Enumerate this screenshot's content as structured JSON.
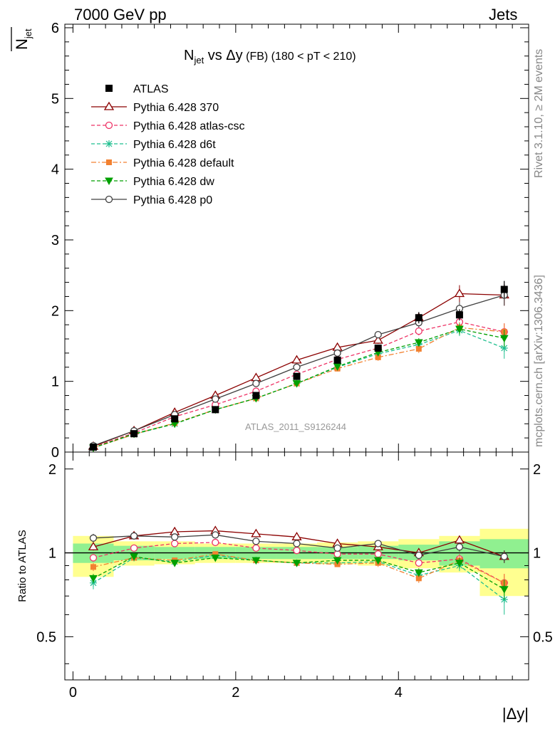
{
  "header": {
    "left": "7000 GeV pp",
    "right": "Jets"
  },
  "side_labels": {
    "rivet": "Rivet 3.1.10, ≥ 2M events",
    "mcplots": "mcplots.cern.ch [arXiv:1306.3436]"
  },
  "colors": {
    "data": "#000000",
    "p370": "#8b0000",
    "atlascsc": "#ee3366",
    "d6t": "#1fbf8f",
    "default": "#f28130",
    "dw": "#00a000",
    "p0": "#404040",
    "band_stat": "#90f090",
    "band_total": "#ffff90",
    "watermark": "#999999"
  },
  "chart_data": [
    {
      "type": "line",
      "title_main": "N",
      "title_sub": "jet",
      "title_vs": " vs Δy",
      "title_fb": " (FB) ",
      "title_range": "(180 < pT < 210)",
      "ylabel": "N",
      "ylabel_sub": "jet",
      "xlabel": "|Δy|",
      "watermark": "ATLAS_2011_S9126244",
      "xlim": [
        -0.1,
        5.6
      ],
      "ylim": [
        0,
        6.05
      ],
      "xticks": [
        "0",
        "2",
        "4"
      ],
      "xtick_values": [
        0,
        2,
        4
      ],
      "yticks": [
        "0",
        "1",
        "2",
        "3",
        "4",
        "5",
        "6"
      ],
      "ytick_values": [
        0,
        1,
        2,
        3,
        4,
        5,
        6
      ],
      "legend_position": "top-left",
      "x": [
        0.25,
        0.75,
        1.25,
        1.75,
        2.25,
        2.75,
        3.25,
        3.75,
        4.25,
        4.75,
        5.3
      ],
      "data": {
        "name": "ATLAS",
        "values": [
          0.07,
          0.26,
          0.47,
          0.6,
          0.8,
          1.07,
          1.3,
          1.47,
          1.9,
          1.94,
          2.3
        ],
        "errors": [
          0.01,
          0.01,
          0.02,
          0.02,
          0.03,
          0.04,
          0.04,
          0.05,
          0.08,
          0.08,
          0.12
        ]
      },
      "series": [
        {
          "name": "Pythia 6.428 370",
          "key": "p370",
          "marker": "triangle-open",
          "dash": "solid",
          "values": [
            0.08,
            0.3,
            0.56,
            0.8,
            1.05,
            1.3,
            1.48,
            1.58,
            1.9,
            2.24,
            2.22
          ],
          "errors": [
            0.01,
            0.01,
            0.02,
            0.02,
            0.03,
            0.03,
            0.04,
            0.05,
            0.07,
            0.12,
            0.15
          ]
        },
        {
          "name": "Pythia 6.428 atlas-csc",
          "key": "atlascsc",
          "marker": "circle-open",
          "dash": "dashed",
          "values": [
            0.07,
            0.27,
            0.5,
            0.67,
            0.86,
            1.1,
            1.31,
            1.47,
            1.71,
            1.84,
            1.7
          ],
          "errors": [
            0.01,
            0.01,
            0.02,
            0.02,
            0.03,
            0.03,
            0.04,
            0.05,
            0.06,
            0.08,
            0.12
          ]
        },
        {
          "name": "Pythia 6.428 d6t",
          "key": "d6t",
          "marker": "star",
          "dash": "dashed",
          "values": [
            0.06,
            0.25,
            0.4,
            0.6,
            0.76,
            0.97,
            1.2,
            1.39,
            1.52,
            1.72,
            1.47
          ],
          "errors": [
            0.01,
            0.01,
            0.02,
            0.02,
            0.03,
            0.03,
            0.04,
            0.05,
            0.06,
            0.08,
            0.15
          ]
        },
        {
          "name": "Pythia 6.428 default",
          "key": "default",
          "marker": "square",
          "dash": "dashdot",
          "values": [
            0.06,
            0.25,
            0.41,
            0.6,
            0.76,
            0.97,
            1.18,
            1.34,
            1.46,
            1.76,
            1.7
          ],
          "errors": [
            0.01,
            0.01,
            0.02,
            0.02,
            0.03,
            0.03,
            0.04,
            0.05,
            0.06,
            0.08,
            0.12
          ]
        },
        {
          "name": "Pythia 6.428 dw",
          "key": "dw",
          "marker": "triangle-down",
          "dash": "dashed",
          "values": [
            0.06,
            0.26,
            0.4,
            0.6,
            0.76,
            0.97,
            1.21,
            1.41,
            1.55,
            1.74,
            1.61
          ],
          "errors": [
            0.01,
            0.01,
            0.02,
            0.02,
            0.03,
            0.03,
            0.04,
            0.05,
            0.06,
            0.08,
            0.12
          ]
        },
        {
          "name": "Pythia 6.428 p0",
          "key": "p0",
          "marker": "circle-open",
          "dash": "solid",
          "values": [
            0.09,
            0.3,
            0.53,
            0.75,
            0.97,
            1.2,
            1.4,
            1.66,
            1.83,
            2.03,
            2.22
          ],
          "errors": [
            0.01,
            0.01,
            0.02,
            0.02,
            0.03,
            0.03,
            0.04,
            0.05,
            0.07,
            0.09,
            0.15
          ]
        }
      ]
    },
    {
      "type": "line",
      "ylabel": "Ratio to ATLAS",
      "xlim": [
        -0.1,
        5.6
      ],
      "ylim": [
        0.35,
        2.3
      ],
      "yticks": [
        "0.5",
        "1",
        "2"
      ],
      "ytick_values": [
        0.5,
        1,
        2
      ],
      "reference_line": 1,
      "bin_edges": [
        0,
        0.5,
        1,
        1.5,
        2,
        2.5,
        3,
        3.5,
        4,
        4.5,
        5,
        5.6
      ],
      "band_stat": [
        [
          0.92,
          1.08
        ],
        [
          0.94,
          1.06
        ],
        [
          0.95,
          1.05
        ],
        [
          0.95,
          1.05
        ],
        [
          0.95,
          1.05
        ],
        [
          0.95,
          1.05
        ],
        [
          0.95,
          1.05
        ],
        [
          0.95,
          1.06
        ],
        [
          0.94,
          1.07
        ],
        [
          0.9,
          1.1
        ],
        [
          0.88,
          1.12
        ]
      ],
      "band_total": [
        [
          0.82,
          1.15
        ],
        [
          0.9,
          1.1
        ],
        [
          0.91,
          1.1
        ],
        [
          0.92,
          1.08
        ],
        [
          0.92,
          1.08
        ],
        [
          0.92,
          1.08
        ],
        [
          0.91,
          1.09
        ],
        [
          0.9,
          1.1
        ],
        [
          0.88,
          1.12
        ],
        [
          0.85,
          1.15
        ],
        [
          0.7,
          1.22
        ]
      ],
      "series": [
        {
          "key": "p370",
          "values": [
            1.05,
            1.15,
            1.19,
            1.2,
            1.17,
            1.14,
            1.08,
            1.05,
            1.0,
            1.11,
            0.97
          ],
          "errors": [
            0.03,
            0.02,
            0.02,
            0.02,
            0.02,
            0.02,
            0.02,
            0.03,
            0.03,
            0.04,
            0.05
          ]
        },
        {
          "key": "atlascsc",
          "values": [
            0.96,
            1.04,
            1.08,
            1.09,
            1.04,
            1.02,
            0.99,
            0.99,
            0.92,
            0.95,
            0.78
          ],
          "errors": [
            0.03,
            0.02,
            0.02,
            0.02,
            0.02,
            0.02,
            0.02,
            0.03,
            0.03,
            0.04,
            0.06
          ]
        },
        {
          "key": "d6t",
          "values": [
            0.78,
            0.96,
            0.93,
            0.98,
            0.94,
            0.92,
            0.92,
            0.93,
            0.83,
            0.9,
            0.68
          ],
          "errors": [
            0.04,
            0.02,
            0.02,
            0.02,
            0.02,
            0.02,
            0.02,
            0.03,
            0.03,
            0.04,
            0.08
          ]
        },
        {
          "key": "default",
          "values": [
            0.89,
            0.96,
            0.94,
            0.99,
            0.94,
            0.92,
            0.91,
            0.92,
            0.81,
            0.94,
            0.78
          ],
          "errors": [
            0.03,
            0.02,
            0.02,
            0.02,
            0.02,
            0.02,
            0.02,
            0.03,
            0.03,
            0.04,
            0.06
          ]
        },
        {
          "key": "dw",
          "values": [
            0.81,
            0.97,
            0.92,
            0.96,
            0.94,
            0.92,
            0.94,
            0.94,
            0.85,
            0.92,
            0.74
          ],
          "errors": [
            0.03,
            0.02,
            0.02,
            0.02,
            0.02,
            0.02,
            0.02,
            0.03,
            0.03,
            0.04,
            0.06
          ]
        },
        {
          "key": "p0",
          "values": [
            1.13,
            1.15,
            1.14,
            1.16,
            1.1,
            1.08,
            1.04,
            1.08,
            0.98,
            1.05,
            0.97
          ],
          "errors": [
            0.04,
            0.02,
            0.02,
            0.02,
            0.02,
            0.02,
            0.02,
            0.03,
            0.03,
            0.04,
            0.05
          ]
        }
      ]
    }
  ]
}
